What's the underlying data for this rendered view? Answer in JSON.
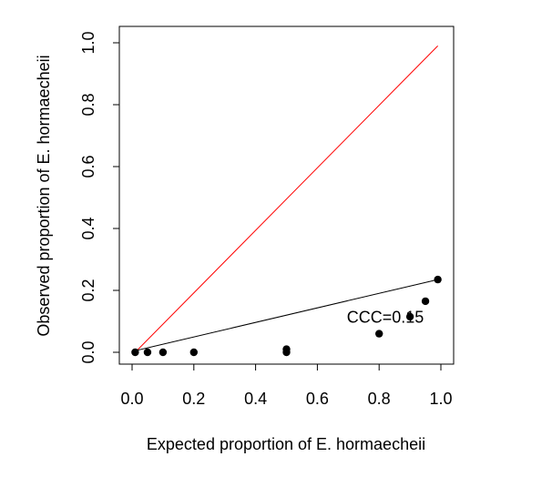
{
  "chart_data": {
    "type": "scatter",
    "title": "",
    "xlabel": "Expected proportion of E. hormaecheii",
    "ylabel": "Observed proportion of E. hormaecheii",
    "xlim": [
      0.0,
      1.0
    ],
    "ylim": [
      0.0,
      1.0
    ],
    "x_ticks": [
      "0.0",
      "0.2",
      "0.4",
      "0.6",
      "0.8",
      "1.0"
    ],
    "y_ticks": [
      "0.0",
      "0.2",
      "0.4",
      "0.6",
      "0.8",
      "1.0"
    ],
    "grid": false,
    "legend": "none",
    "series": [
      {
        "points": [
          {
            "x": 0.01,
            "y": 0.0
          },
          {
            "x": 0.05,
            "y": 0.0
          },
          {
            "x": 0.1,
            "y": 0.0
          },
          {
            "x": 0.2,
            "y": 0.0
          },
          {
            "x": 0.5,
            "y": 0.0
          },
          {
            "x": 0.5,
            "y": 0.01
          },
          {
            "x": 0.8,
            "y": 0.06
          },
          {
            "x": 0.9,
            "y": 0.115
          },
          {
            "x": 0.95,
            "y": 0.165
          },
          {
            "x": 0.99,
            "y": 0.235
          }
        ],
        "color": "#000000"
      }
    ],
    "lines": [
      {
        "role": "identity-line",
        "from": [
          0.01,
          0.0
        ],
        "to": [
          0.99,
          0.99
        ],
        "color": "#ff0000"
      },
      {
        "role": "fit-line",
        "from": [
          0.01,
          0.005
        ],
        "to": [
          0.99,
          0.235
        ],
        "color": "#000000"
      }
    ],
    "annotations": [
      {
        "text": "CCC=0.15",
        "x": 0.82,
        "y": 0.095
      }
    ]
  }
}
